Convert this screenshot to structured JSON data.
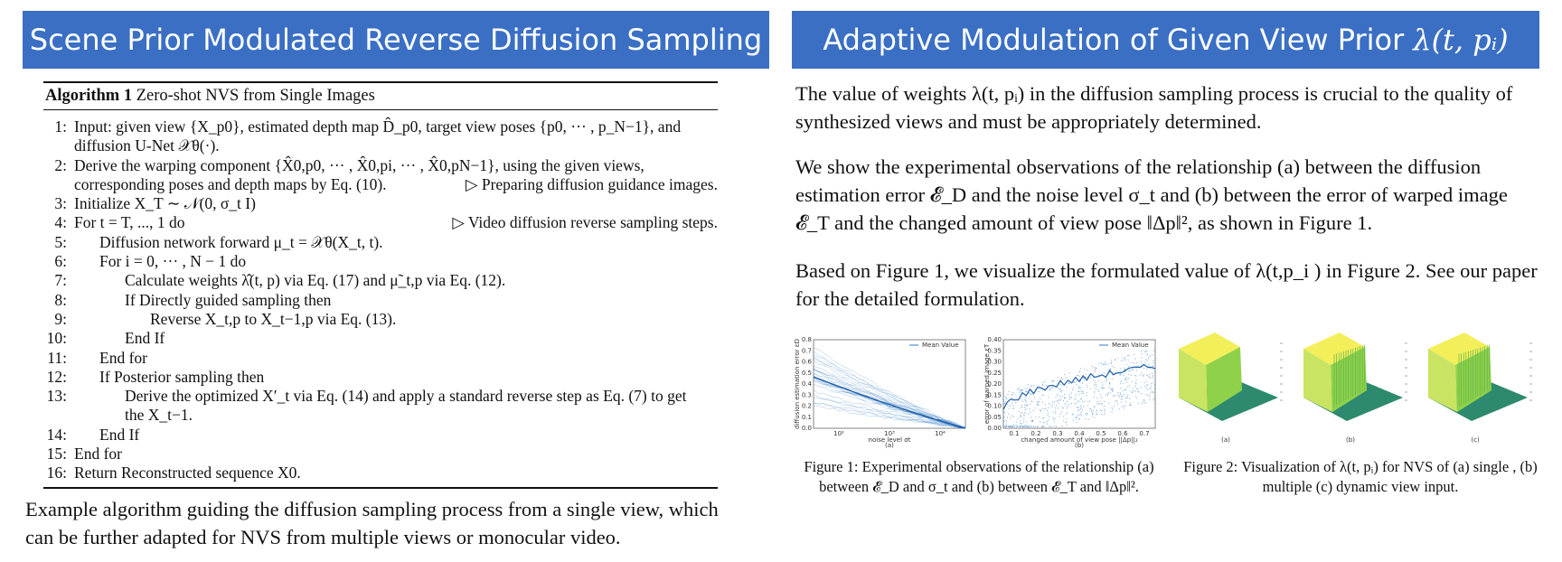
{
  "left_banner": {
    "title": "Scene Prior Modulated Reverse Diffusion Sampling"
  },
  "right_banner": {
    "title": "Adaptive Modulation of Given View Prior",
    "math": "λ(t, pᵢ)"
  },
  "algorithm": {
    "label": "Algorithm 1",
    "title": "Zero-shot NVS from Single Images",
    "lines": [
      {
        "n": "1:",
        "text": "Input: given view {X_p0}, estimated depth map D̂_p0, target view poses {p0, ··· , p_N−1}, and"
      },
      {
        "n": "",
        "text": "diffusion U-Net 𝒳θ(·)."
      },
      {
        "n": "2:",
        "text": "Derive the warping component {X̂0,p0, ··· , X̂0,pi, ··· , X̂0,pN−1}, using the given views,"
      },
      {
        "n": "",
        "text": "corresponding poses and depth maps by Eq. (10).",
        "comment": "▷ Preparing diffusion guidance images."
      },
      {
        "n": "3:",
        "text": "Initialize X_T ∼ 𝒩(0, σ_t I)"
      },
      {
        "n": "4:",
        "text": "For t = T, ..., 1 do",
        "comment": "▷ Video diffusion reverse sampling steps."
      },
      {
        "n": "5:",
        "text": "Diffusion network forward μ_t = 𝒳θ(X_t, t)."
      },
      {
        "n": "6:",
        "text": "For i = 0, ··· , N − 1 do"
      },
      {
        "n": "7:",
        "text": "Calculate weights λ̂(t, p) via  Eq. (17) and μ̃_t,p via Eq. (12)."
      },
      {
        "n": "8:",
        "text": "If Directly guided sampling then"
      },
      {
        "n": "9:",
        "text": "Reverse X_t,p to X_t−1,p via  Eq. (13)."
      },
      {
        "n": "10:",
        "text": "End If"
      },
      {
        "n": "11:",
        "text": "End for"
      },
      {
        "n": "12:",
        "text": "If Posterior sampling then"
      },
      {
        "n": "13:",
        "text": "Derive the optimized X′_t via Eq. (14) and apply a standard reverse step as Eq. (7) to get"
      },
      {
        "n": "",
        "text": "the X_t−1."
      },
      {
        "n": "14:",
        "text": "End If"
      },
      {
        "n": "15:",
        "text": "End for"
      },
      {
        "n": "16:",
        "text": "Return Reconstructed sequence X0."
      }
    ]
  },
  "left_caption": "Example algorithm guiding the diffusion sampling process from a single view, which can be further adapted for NVS from multiple views or monocular video.",
  "right_paragraphs": {
    "p1": "The value of weights λ(t, pᵢ) in the diffusion sampling process is crucial to the quality of synthesized views and must be appropriately determined.",
    "p2": "We show the experimental observations of the relationship (a) between the diffusion estimation error 𝓔_D and the noise level σ_t and (b) between  the error of warped image 𝓔_T and the changed amount of view pose ‖Δp‖², as shown in Figure 1.",
    "p3": "Based on Figure 1, we visualize the formulated value  of  λ(t,p_i )  in Figure 2. See our paper for the detailed formulation."
  },
  "figure1": {
    "caption": "Figure 1: Experimental observations of the relationship (a) between 𝓔_D and σ_t and (b) between 𝓔_T and ‖Δp‖².",
    "a": {
      "legend": "Mean Value",
      "xlabel": "noise level σt",
      "ylabel": "diffusion estimation error εD",
      "yticks": [
        "0.8",
        "0.7",
        "0.6",
        "0.5",
        "0.4",
        "0.3",
        "0.2",
        "0.1",
        "0.0"
      ],
      "xticks": [
        "10²",
        "10³",
        "10⁴"
      ],
      "tag": "(a)"
    },
    "b": {
      "legend": "Mean Value",
      "xlabel": "changed amount of view pose ||Δp||₂",
      "ylabel": "error of warped image εT",
      "yticks": [
        "0.40",
        "0.35",
        "0.30",
        "0.25",
        "0.20",
        "0.15",
        "0.10",
        "0.05",
        "0.00"
      ],
      "xticks": [
        "0.1",
        "0.2",
        "0.3",
        "0.4",
        "0.5",
        "0.6",
        "0.7"
      ],
      "tag": "(b)"
    }
  },
  "figure2": {
    "caption": "Figure 2: Visualization of λ(t, pᵢ) for NVS of (a) single , (b) multiple (c) dynamic view input.",
    "tags": [
      "(a)",
      "(b)",
      "(c)"
    ],
    "colors": {
      "top": "#f3ef5a",
      "wall": "#8fd24a",
      "floor": "#2e8a6e"
    }
  },
  "colors": {
    "banner": "#3a6fc4",
    "ref": "#d42020",
    "series": "#2f78c4"
  }
}
